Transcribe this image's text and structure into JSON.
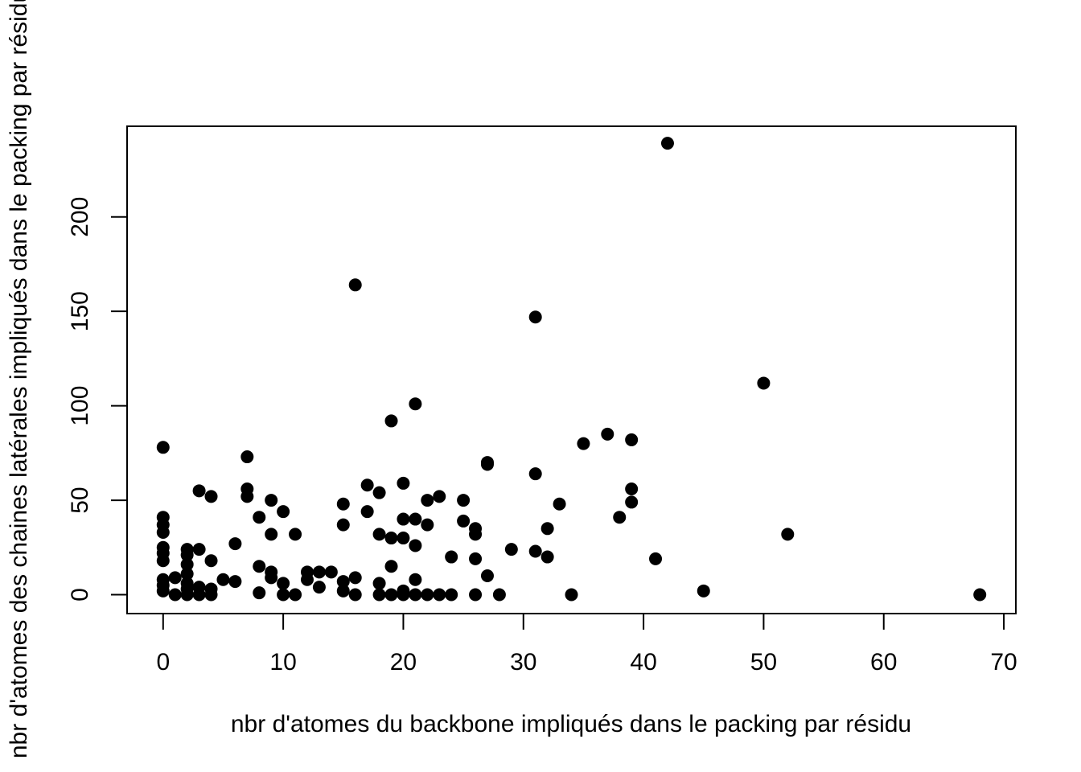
{
  "chart_data": {
    "type": "scatter",
    "title": "",
    "xlabel": "nbr d'atomes du backbone impliqués dans le packing par résidu",
    "ylabel": "nbr d'atomes des chaines latérales impliqués dans le packing par résidu",
    "xlim": [
      -3,
      71
    ],
    "ylim": [
      -10,
      248
    ],
    "xticks": [
      0,
      10,
      20,
      30,
      40,
      50,
      60,
      70
    ],
    "xtick_labels": [
      "0",
      "10",
      "20",
      "30",
      "40",
      "50",
      "60",
      "70"
    ],
    "yticks": [
      0,
      50,
      100,
      150,
      200
    ],
    "ytick_labels": [
      "0",
      "50",
      "100",
      "150",
      "200"
    ],
    "grid": false,
    "marker_color": "#000000",
    "points": [
      [
        0,
        78
      ],
      [
        0,
        41
      ],
      [
        0,
        37
      ],
      [
        0,
        33
      ],
      [
        0,
        25
      ],
      [
        0,
        22
      ],
      [
        0,
        18
      ],
      [
        0,
        8
      ],
      [
        0,
        5
      ],
      [
        0,
        2
      ],
      [
        1,
        9
      ],
      [
        1,
        0
      ],
      [
        2,
        24
      ],
      [
        2,
        21
      ],
      [
        2,
        16
      ],
      [
        2,
        11
      ],
      [
        2,
        6
      ],
      [
        2,
        3
      ],
      [
        2,
        0
      ],
      [
        3,
        55
      ],
      [
        3,
        24
      ],
      [
        3,
        4
      ],
      [
        3,
        0
      ],
      [
        4,
        52
      ],
      [
        4,
        18
      ],
      [
        4,
        3
      ],
      [
        4,
        0
      ],
      [
        5,
        8
      ],
      [
        6,
        27
      ],
      [
        6,
        7
      ],
      [
        7,
        73
      ],
      [
        7,
        56
      ],
      [
        7,
        52
      ],
      [
        8,
        41
      ],
      [
        8,
        15
      ],
      [
        8,
        1
      ],
      [
        9,
        50
      ],
      [
        9,
        32
      ],
      [
        9,
        12
      ],
      [
        9,
        9
      ],
      [
        10,
        44
      ],
      [
        10,
        6
      ],
      [
        10,
        0
      ],
      [
        11,
        32
      ],
      [
        11,
        0
      ],
      [
        12,
        12
      ],
      [
        12,
        8
      ],
      [
        13,
        12
      ],
      [
        13,
        4
      ],
      [
        14,
        12
      ],
      [
        15,
        48
      ],
      [
        15,
        37
      ],
      [
        15,
        7
      ],
      [
        15,
        2
      ],
      [
        16,
        164
      ],
      [
        16,
        9
      ],
      [
        16,
        0
      ],
      [
        17,
        58
      ],
      [
        17,
        44
      ],
      [
        18,
        54
      ],
      [
        18,
        32
      ],
      [
        18,
        6
      ],
      [
        18,
        0
      ],
      [
        19,
        92
      ],
      [
        19,
        30
      ],
      [
        19,
        15
      ],
      [
        19,
        0
      ],
      [
        20,
        59
      ],
      [
        20,
        40
      ],
      [
        20,
        30
      ],
      [
        20,
        2
      ],
      [
        20,
        0
      ],
      [
        21,
        101
      ],
      [
        21,
        40
      ],
      [
        21,
        26
      ],
      [
        21,
        8
      ],
      [
        21,
        0
      ],
      [
        22,
        50
      ],
      [
        22,
        37
      ],
      [
        22,
        0
      ],
      [
        23,
        52
      ],
      [
        23,
        0
      ],
      [
        24,
        20
      ],
      [
        24,
        0
      ],
      [
        25,
        50
      ],
      [
        25,
        39
      ],
      [
        26,
        35
      ],
      [
        26,
        32
      ],
      [
        26,
        19
      ],
      [
        26,
        0
      ],
      [
        27,
        70
      ],
      [
        27,
        69
      ],
      [
        27,
        10
      ],
      [
        28,
        0
      ],
      [
        29,
        24
      ],
      [
        31,
        147
      ],
      [
        31,
        64
      ],
      [
        31,
        23
      ],
      [
        32,
        35
      ],
      [
        32,
        20
      ],
      [
        33,
        48
      ],
      [
        34,
        0
      ],
      [
        35,
        80
      ],
      [
        37,
        85
      ],
      [
        38,
        41
      ],
      [
        39,
        82
      ],
      [
        39,
        56
      ],
      [
        39,
        49
      ],
      [
        41,
        19
      ],
      [
        42,
        239
      ],
      [
        45,
        2
      ],
      [
        50,
        112
      ],
      [
        52,
        32
      ],
      [
        68,
        0
      ]
    ]
  }
}
